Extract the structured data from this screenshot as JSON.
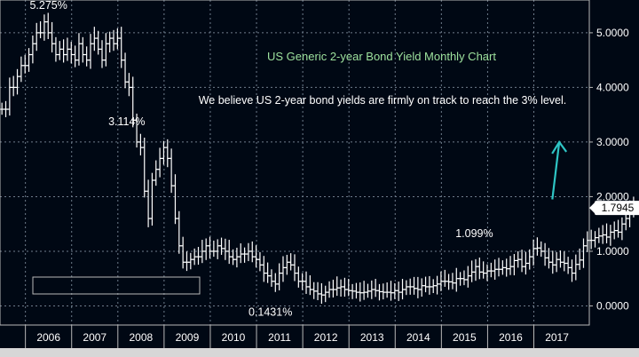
{
  "colors": {
    "background": "#000814",
    "plot_border": "#b8b8b8",
    "grid": "#6f7d8c",
    "candle": "#ffffff",
    "title": "#9ee29e",
    "annotation": "#ffffff",
    "last_price_box_bg": "#ffffff",
    "last_price_box_text": "#000000",
    "arrow": "#2ec4c4",
    "bottom_bar": "#d7d7d7"
  },
  "chart_data": {
    "type": "candlestick",
    "title": "US Generic 2-year Bond Yield Monthly Chart",
    "subtitle": "We believe US 2-year bond yields are firmly on track to reach the 3% level.",
    "xlabel": "",
    "ylabel": "",
    "ylim": [
      -0.35,
      5.6
    ],
    "xlim": [
      2005.45,
      2018.2
    ],
    "y_ticks": [
      0,
      1,
      2,
      3,
      4,
      5
    ],
    "y_tick_labels": [
      "0.0000",
      "1.0000",
      "2.0000",
      "3.0000",
      "4.0000",
      "5.0000"
    ],
    "x_tick_labels": [
      "2006",
      "2007",
      "2008",
      "2009",
      "2010",
      "2011",
      "2012",
      "2013",
      "2014",
      "2015",
      "2016",
      "2017"
    ],
    "grid": true,
    "last_price": 1.7945,
    "last_price_label": "1.7945",
    "annotations": [
      {
        "id": "peak-2006",
        "text": "5.275%",
        "x": 2006.5,
        "y": 5.275
      },
      {
        "id": "rebound-2008",
        "text": "3.114%",
        "x": 2008.0,
        "y": 3.114
      },
      {
        "id": "low-2011",
        "text": "0.1431%",
        "x": 2011.3,
        "y": 0.1431
      },
      {
        "id": "high-2015",
        "text": "1.099%",
        "x": 2016.0,
        "y": 1.099
      }
    ],
    "arrow": {
      "from": [
        2017.4,
        1.95
      ],
      "to": [
        2017.55,
        3.0
      ]
    },
    "series": [
      {
        "closes": [
          3.6,
          3.6,
          4.0,
          4.0,
          4.2,
          4.4,
          4.4,
          4.6,
          4.8,
          5.0,
          5.0,
          5.2,
          5.0,
          4.8,
          4.6,
          4.7,
          4.6,
          4.7,
          4.6,
          4.5,
          4.8,
          4.6,
          4.5,
          4.8,
          4.9,
          4.7,
          4.5,
          4.8,
          4.9,
          4.8,
          4.9,
          4.5,
          4.1,
          4.0,
          3.4,
          3.0,
          2.9,
          2.1,
          1.6,
          2.3,
          2.5,
          2.7,
          2.9,
          2.7,
          2.2,
          1.6,
          1.1,
          0.8,
          0.8,
          0.85,
          0.9,
          0.9,
          1.0,
          1.1,
          1.0,
          1.0,
          1.1,
          1.05,
          1.0,
          0.9,
          0.85,
          0.9,
          0.95,
          0.95,
          1.0,
          0.9,
          0.85,
          0.75,
          0.6,
          0.55,
          0.45,
          0.4,
          0.6,
          0.7,
          0.8,
          0.75,
          0.6,
          0.45,
          0.45,
          0.35,
          0.3,
          0.27,
          0.22,
          0.2,
          0.25,
          0.3,
          0.3,
          0.33,
          0.35,
          0.3,
          0.28,
          0.27,
          0.25,
          0.24,
          0.25,
          0.27,
          0.3,
          0.28,
          0.26,
          0.25,
          0.25,
          0.24,
          0.28,
          0.25,
          0.3,
          0.35,
          0.35,
          0.32,
          0.3,
          0.37,
          0.35,
          0.35,
          0.37,
          0.4,
          0.45,
          0.45,
          0.44,
          0.42,
          0.5,
          0.5,
          0.48,
          0.55,
          0.62,
          0.72,
          0.62,
          0.6,
          0.64,
          0.64,
          0.67,
          0.67,
          0.7,
          0.68,
          0.72,
          0.83,
          0.85,
          0.72,
          0.78,
          0.9,
          1.05,
          1.06,
          1.0,
          0.88,
          0.8,
          0.75,
          0.85,
          0.8,
          0.78,
          0.7,
          0.6,
          0.76,
          0.84,
          1.1,
          1.2,
          1.2,
          1.25,
          1.28,
          1.3,
          1.26,
          1.35,
          1.38,
          1.35,
          1.5,
          1.6,
          1.75,
          1.79
        ]
      }
    ]
  }
}
